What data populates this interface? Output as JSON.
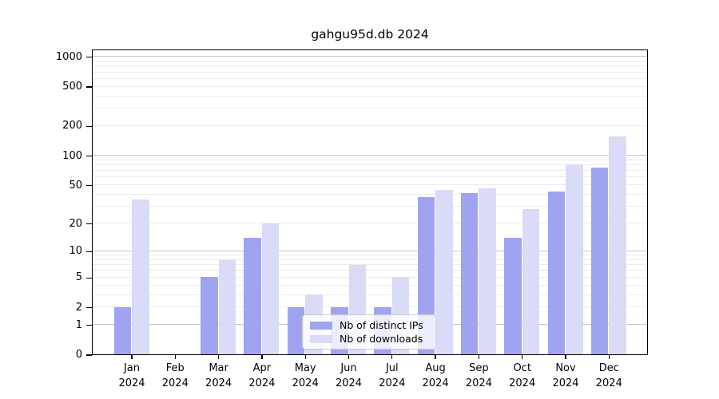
{
  "title": "gahgu95d.db 2024",
  "chart_data": {
    "type": "bar",
    "title": "gahgu95d.db 2024",
    "categories": [
      "Jan 2024",
      "Feb 2024",
      "Mar 2024",
      "Apr 2024",
      "May 2024",
      "Jun 2024",
      "Jul 2024",
      "Aug 2024",
      "Sep 2024",
      "Oct 2024",
      "Nov 2024",
      "Dec 2024"
    ],
    "series": [
      {
        "name": "Nb of distinct IPs",
        "color": "#a0a3f0",
        "values": [
          2,
          0,
          5,
          14,
          2,
          2,
          2,
          37,
          41,
          14,
          43,
          75
        ]
      },
      {
        "name": "Nb of downloads",
        "color": "#d9dbf7",
        "values": [
          35,
          0,
          8,
          20,
          3,
          7,
          5,
          44,
          46,
          28,
          81,
          155
        ]
      }
    ],
    "xlabel": "",
    "ylabel": "",
    "y_ticks": [
      0,
      1,
      2,
      5,
      10,
      20,
      50,
      100,
      200,
      500,
      1000
    ],
    "y_scale": "log10(1+x)",
    "ylim": [
      0,
      1000
    ],
    "grid": "on",
    "grid_major_at": [
      1,
      10,
      100,
      1000
    ],
    "legend_position": "lower center"
  },
  "colors": {
    "bar_distinct_ips": "#a0a3f0",
    "bar_downloads": "#d9dbf7",
    "grid_minor": "#ececec",
    "grid_major": "#c6c6c6",
    "axis": "#000000",
    "legend_border": "#cccccc"
  }
}
